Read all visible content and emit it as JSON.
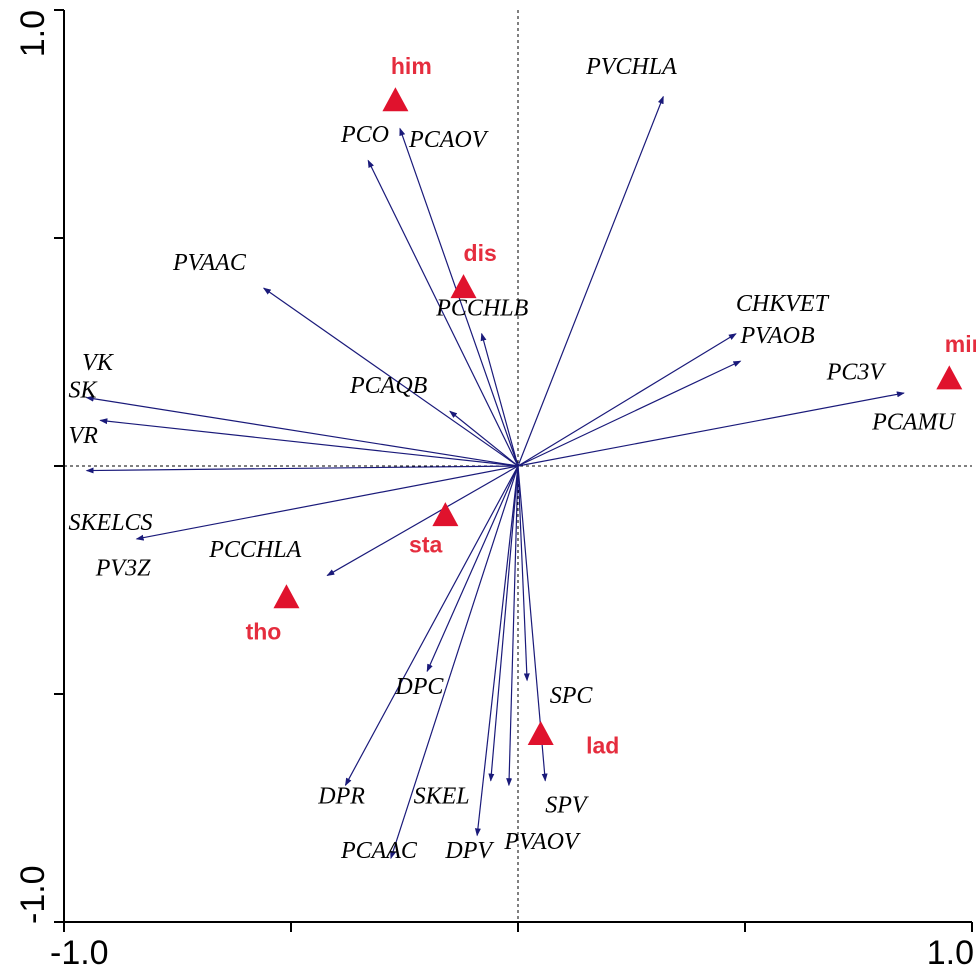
{
  "chart_data": {
    "type": "biplot",
    "xlim": [
      -1.0,
      1.0
    ],
    "ylim": [
      -1.0,
      1.0
    ],
    "x_tick_labels": [
      {
        "value": -1.0,
        "text": "-1.0"
      },
      {
        "value": 1.0,
        "text": "1.0"
      }
    ],
    "y_tick_labels": [
      {
        "value": -1.0,
        "text": "-1.0"
      },
      {
        "value": 1.0,
        "text": "1.0"
      }
    ],
    "minor_ticks": [
      -0.5,
      0.0,
      0.5
    ],
    "zero_lines": true,
    "arrow_color": "#1a1a7a",
    "site_color": "#e0122d",
    "site_label_color": "#e52d3e",
    "arrows": [
      {
        "name": "PVCHLA",
        "x": 0.32,
        "y": 0.81
      },
      {
        "name": "PCO",
        "x": -0.33,
        "y": 0.67
      },
      {
        "name": "PCAOV",
        "x": -0.26,
        "y": 0.74
      },
      {
        "name": "PVAAC",
        "x": -0.56,
        "y": 0.39
      },
      {
        "name": "PCCHLB",
        "x": -0.08,
        "y": 0.29
      },
      {
        "name": "PCAQB",
        "x": -0.15,
        "y": 0.12
      },
      {
        "name": "CHKVET",
        "x": 0.48,
        "y": 0.29
      },
      {
        "name": "PVAOB",
        "x": 0.49,
        "y": 0.23
      },
      {
        "name": "PCAMU",
        "x": 0.85,
        "y": 0.16
      },
      {
        "name": "VK",
        "x": -0.95,
        "y": 0.15
      },
      {
        "name": "SK",
        "x": -0.92,
        "y": 0.1
      },
      {
        "name": "VR",
        "x": -0.95,
        "y": -0.01
      },
      {
        "name": "SKELCS",
        "x": -0.84,
        "y": -0.16
      },
      {
        "name": "PCCHLA",
        "x": -0.42,
        "y": -0.24
      },
      {
        "name": "DPC",
        "x": -0.2,
        "y": -0.45
      },
      {
        "name": "DPR",
        "x": -0.38,
        "y": -0.7
      },
      {
        "name": "PCAAC",
        "x": -0.28,
        "y": -0.86
      },
      {
        "name": "DPV",
        "x": -0.09,
        "y": -0.81
      },
      {
        "name": "SKEL",
        "x": -0.06,
        "y": -0.69
      },
      {
        "name": "PVAOV",
        "x": -0.02,
        "y": -0.7
      },
      {
        "name": "SPC",
        "x": 0.02,
        "y": -0.47
      },
      {
        "name": "SPV",
        "x": 0.06,
        "y": -0.69
      }
    ],
    "labels": [
      {
        "text": "PVCHLA",
        "x": 0.15,
        "y": 0.86
      },
      {
        "text": "PCO",
        "x": -0.39,
        "y": 0.71
      },
      {
        "text": "PCAOV",
        "x": -0.24,
        "y": 0.7
      },
      {
        "text": "PVAAC",
        "x": -0.76,
        "y": 0.43
      },
      {
        "text": "PCCHLB",
        "x": -0.18,
        "y": 0.33
      },
      {
        "text": "PCAQB",
        "x": -0.37,
        "y": 0.16
      },
      {
        "text": "CHKVET",
        "x": 0.48,
        "y": 0.34
      },
      {
        "text": "PVAOB",
        "x": 0.49,
        "y": 0.27
      },
      {
        "text": "PC3V",
        "x": 0.68,
        "y": 0.19
      },
      {
        "text": "PCAMU",
        "x": 0.78,
        "y": 0.08
      },
      {
        "text": "VK",
        "x": -0.96,
        "y": 0.21
      },
      {
        "text": "SK",
        "x": -0.99,
        "y": 0.15
      },
      {
        "text": "VR",
        "x": -0.99,
        "y": 0.05
      },
      {
        "text": "SKELCS",
        "x": -0.99,
        "y": -0.14
      },
      {
        "text": "PV3Z",
        "x": -0.93,
        "y": -0.24
      },
      {
        "text": "PCCHLA",
        "x": -0.68,
        "y": -0.2
      },
      {
        "text": "DPC",
        "x": -0.27,
        "y": -0.5
      },
      {
        "text": "DPR",
        "x": -0.44,
        "y": -0.74
      },
      {
        "text": "SKEL",
        "x": -0.23,
        "y": -0.74
      },
      {
        "text": "PCAAC",
        "x": -0.39,
        "y": -0.86
      },
      {
        "text": "DPV",
        "x": -0.16,
        "y": -0.86
      },
      {
        "text": "PVAOV",
        "x": -0.03,
        "y": -0.84
      },
      {
        "text": "SPC",
        "x": 0.07,
        "y": -0.52
      },
      {
        "text": "SPV",
        "x": 0.06,
        "y": -0.76
      }
    ],
    "sites": [
      {
        "name": "him",
        "x": -0.27,
        "y": 0.8,
        "lx": -0.28,
        "ly": 0.86
      },
      {
        "name": "dis",
        "x": -0.12,
        "y": 0.39,
        "lx": -0.12,
        "ly": 0.45
      },
      {
        "name": "min",
        "x": 0.95,
        "y": 0.19,
        "lx": 0.94,
        "ly": 0.25
      },
      {
        "name": "sta",
        "x": -0.16,
        "y": -0.11,
        "lx": -0.24,
        "ly": -0.19
      },
      {
        "name": "tho",
        "x": -0.51,
        "y": -0.29,
        "lx": -0.6,
        "ly": -0.38
      },
      {
        "name": "lad",
        "x": 0.05,
        "y": -0.59,
        "lx": 0.15,
        "ly": -0.63
      }
    ]
  }
}
